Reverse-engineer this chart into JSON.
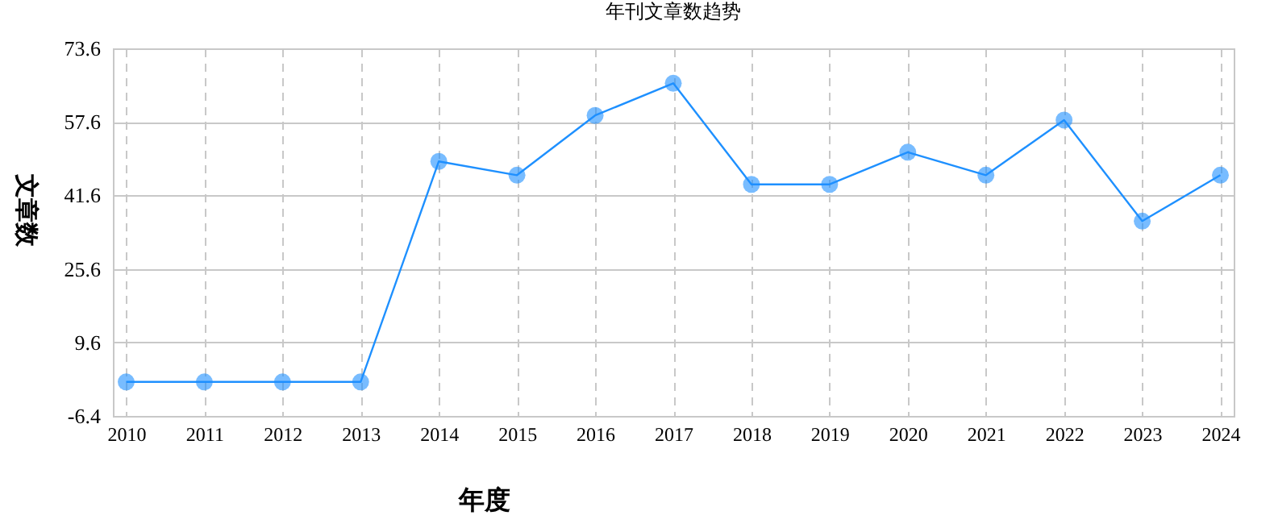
{
  "chart_data": {
    "type": "line",
    "title": "年刊文章数趋势",
    "xlabel": "年度",
    "ylabel": "文章数",
    "categories": [
      "2010",
      "2011",
      "2012",
      "2013",
      "2014",
      "2015",
      "2016",
      "2017",
      "2018",
      "2019",
      "2020",
      "2021",
      "2022",
      "2023",
      "2024"
    ],
    "series": [
      {
        "color": "#1e90ff",
        "values": [
          1,
          1,
          1,
          1,
          49,
          46,
          59,
          66,
          44,
          44,
          51,
          46,
          58,
          36,
          46
        ]
      }
    ],
    "ylim": [
      -6.4,
      73.6
    ],
    "yticks": [
      -6.4,
      9.6,
      25.6,
      41.6,
      57.6,
      73.6
    ],
    "grid": true,
    "marker": "circle",
    "line_style": "solid"
  }
}
